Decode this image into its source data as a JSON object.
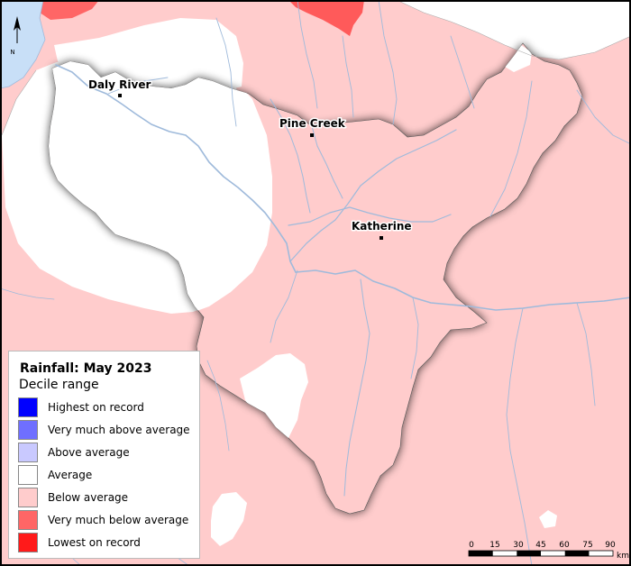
{
  "legend": {
    "title": "Rainfall: May 2023",
    "subtitle": "Decile range",
    "items": [
      {
        "label": "Highest on record",
        "color": "#0000ff"
      },
      {
        "label": "Very much above average",
        "color": "#6f6fff"
      },
      {
        "label": "Above average",
        "color": "#c9c9ff"
      },
      {
        "label": "Average",
        "color": "#ffffff"
      },
      {
        "label": "Below average",
        "color": "#ffcccc"
      },
      {
        "label": "Very much below average",
        "color": "#ff6666"
      },
      {
        "label": "Lowest on record",
        "color": "#ff1a1a"
      }
    ]
  },
  "places": [
    {
      "name": "Daly River"
    },
    {
      "name": "Pine Creek"
    },
    {
      "name": "Katherine"
    }
  ],
  "north_arrow": {
    "label": "N"
  },
  "scale_bar": {
    "ticks": [
      "0",
      "15",
      "30",
      "45",
      "60",
      "75",
      "90"
    ],
    "unit": "km"
  },
  "colors": {
    "water": "#c8dff7",
    "river": "#9fbadb",
    "background": "#ffcccc"
  }
}
